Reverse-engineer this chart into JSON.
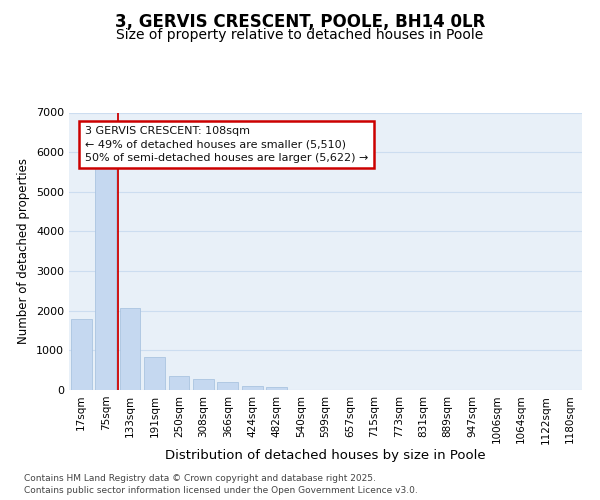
{
  "title": "3, GERVIS CRESCENT, POOLE, BH14 0LR",
  "subtitle": "Size of property relative to detached houses in Poole",
  "xlabel": "Distribution of detached houses by size in Poole",
  "ylabel": "Number of detached properties",
  "categories": [
    "17sqm",
    "75sqm",
    "133sqm",
    "191sqm",
    "250sqm",
    "308sqm",
    "366sqm",
    "424sqm",
    "482sqm",
    "540sqm",
    "599sqm",
    "657sqm",
    "715sqm",
    "773sqm",
    "831sqm",
    "889sqm",
    "947sqm",
    "1006sqm",
    "1064sqm",
    "1122sqm",
    "1180sqm"
  ],
  "values": [
    1780,
    5820,
    2080,
    820,
    360,
    290,
    210,
    90,
    80,
    0,
    0,
    0,
    0,
    0,
    0,
    0,
    0,
    0,
    0,
    0,
    0
  ],
  "bar_color": "#c5d8f0",
  "bar_edge_color": "#aac4e0",
  "grid_color": "#ccddf0",
  "background_color": "#e8f0f8",
  "vline_x": 1.5,
  "vline_color": "#cc0000",
  "annotation_text": "3 GERVIS CRESCENT: 108sqm\n← 49% of detached houses are smaller (5,510)\n50% of semi-detached houses are larger (5,622) →",
  "annotation_box_edgecolor": "#cc0000",
  "annotation_text_color": "#111111",
  "footer": "Contains HM Land Registry data © Crown copyright and database right 2025.\nContains public sector information licensed under the Open Government Licence v3.0.",
  "ylim": [
    0,
    7000
  ],
  "yticks": [
    0,
    1000,
    2000,
    3000,
    4000,
    5000,
    6000,
    7000
  ],
  "title_fontsize": 12,
  "subtitle_fontsize": 10,
  "xlabel_fontsize": 9.5,
  "ylabel_fontsize": 8.5,
  "tick_fontsize": 7.5,
  "annotation_fontsize": 8,
  "footer_fontsize": 6.5
}
